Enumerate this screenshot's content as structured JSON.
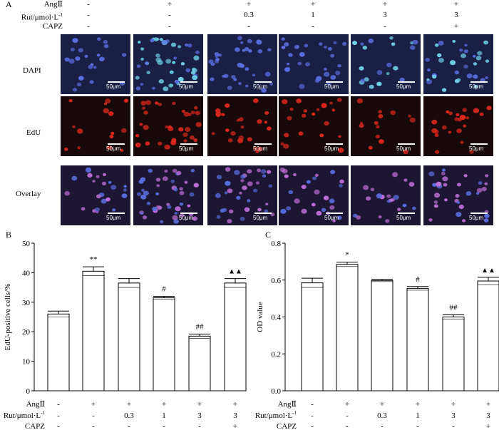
{
  "figure": {
    "panel_a": {
      "letter": "A",
      "header_rows": [
        {
          "label": "AngⅡ",
          "values": [
            "-",
            "+",
            "+",
            "+",
            "+",
            "+"
          ]
        },
        {
          "label": "Rut/μmol·L",
          "sup": "-1",
          "values": [
            "-",
            "-",
            "0.3",
            "1",
            "3",
            "3"
          ]
        },
        {
          "label": "CAPZ",
          "values": [
            "-",
            "-",
            "-",
            "-",
            "-",
            "+"
          ]
        }
      ],
      "rows": [
        {
          "label": "DAPI",
          "kind": "dapi"
        },
        {
          "label": "EdU",
          "kind": "edu"
        },
        {
          "label": "Overlay",
          "kind": "overlay"
        }
      ],
      "scale_bar_text": "50μm"
    },
    "panel_b": {
      "letter": "B",
      "chart_data": {
        "type": "bar",
        "ylabel": "EdU-positive cells/%",
        "ylim": [
          0,
          50
        ],
        "yticks": [
          0,
          10,
          20,
          30,
          40,
          50
        ],
        "values": [
          26,
          40.5,
          36.5,
          31.5,
          18.5,
          36.5
        ],
        "errors": [
          1.0,
          1.5,
          1.5,
          0.5,
          0.7,
          1.5
        ],
        "annotations": [
          "",
          "**",
          "",
          "#",
          "##",
          "▲▲"
        ]
      },
      "conditions": [
        {
          "label": "AngⅡ",
          "values": [
            "-",
            "+",
            "+",
            "+",
            "+",
            "+"
          ]
        },
        {
          "label": "Rut/μmol·L",
          "sup": "-1",
          "values": [
            "-",
            "-",
            "0.3",
            "1",
            "3",
            "3"
          ]
        },
        {
          "label": "CAPZ",
          "values": [
            "-",
            "-",
            "-",
            "-",
            "-",
            "+"
          ]
        }
      ]
    },
    "panel_c": {
      "letter": "C",
      "chart_data": {
        "type": "bar",
        "ylabel": "OD value",
        "ylim": [
          0,
          0.8
        ],
        "yticks": [
          "0.0",
          "0.2",
          "0.4",
          "0.6",
          "0.8"
        ],
        "values": [
          0.585,
          0.685,
          0.598,
          0.555,
          0.4,
          0.595
        ],
        "errors": [
          0.025,
          0.012,
          0.006,
          0.01,
          0.012,
          0.02
        ],
        "annotations": [
          "",
          "*",
          "",
          "#",
          "##",
          "▲▲"
        ]
      },
      "conditions": [
        {
          "label": "AngⅡ",
          "values": [
            "-",
            "+",
            "+",
            "+",
            "+",
            "+"
          ]
        },
        {
          "label": "Rut/μmol·L",
          "sup": "-1",
          "values": [
            "-",
            "-",
            "0.3",
            "1",
            "3",
            "3"
          ]
        },
        {
          "label": "CAPZ",
          "values": [
            "-",
            "-",
            "-",
            "-",
            "-",
            "+"
          ]
        }
      ]
    },
    "colors": {
      "dapi_nucleus": "#5a6ee0",
      "dapi_bright": "#6fd0e8",
      "edu_nucleus": "#e0281e",
      "overlay_nucleus": "#c070d8",
      "bar_fill": "#ffffff",
      "axis": "#000000"
    }
  }
}
